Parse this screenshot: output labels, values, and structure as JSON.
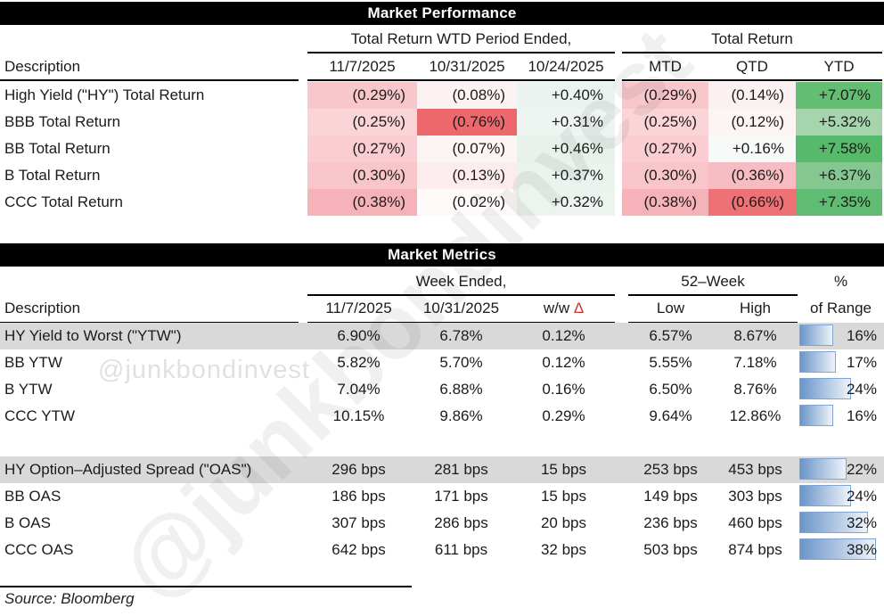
{
  "watermark": {
    "small_text": "@junkbondinvest",
    "large_text": "@junkbondinvest"
  },
  "source_note": "Source: Bloomberg",
  "performance": {
    "title": "Market Performance",
    "description_header": "Description",
    "group1_header": "Total Return WTD Period Ended,",
    "group2_header": "Total Return",
    "columns": [
      "11/7/2025",
      "10/31/2025",
      "10/24/2025",
      "MTD",
      "QTD",
      "YTD"
    ],
    "rows": [
      {
        "label": "High Yield (\"HY\") Total Return",
        "cells": [
          {
            "text": "(0.29%)",
            "bg": "#f8c7cc"
          },
          {
            "text": "(0.08%)",
            "bg": "#fdf2f2"
          },
          {
            "text": "+0.40%",
            "bg": "#eaf3ef"
          },
          {
            "text": "(0.29%)",
            "bg": "#f8c7cc"
          },
          {
            "text": "(0.14%)",
            "bg": "#fcf1f1"
          },
          {
            "text": "+7.07%",
            "bg": "#63be74"
          }
        ]
      },
      {
        "label": "BBB Total Return",
        "cells": [
          {
            "text": "(0.25%)",
            "bg": "#fad4d7"
          },
          {
            "text": "(0.76%)",
            "bg": "#ed686d"
          },
          {
            "text": "+0.31%",
            "bg": "#edf4f1"
          },
          {
            "text": "(0.25%)",
            "bg": "#fad4d7"
          },
          {
            "text": "(0.12%)",
            "bg": "#fdf4f4"
          },
          {
            "text": "+5.32%",
            "bg": "#a5d4ad"
          }
        ]
      },
      {
        "label": "BB Total Return",
        "cells": [
          {
            "text": "(0.27%)",
            "bg": "#f9cdd1"
          },
          {
            "text": "(0.07%)",
            "bg": "#fdf4f4"
          },
          {
            "text": "+0.46%",
            "bg": "#e8f2eb"
          },
          {
            "text": "(0.27%)",
            "bg": "#f9cdd1"
          },
          {
            "text": "+0.16%",
            "bg": "#f7faf8"
          },
          {
            "text": "+7.58%",
            "bg": "#57b96a"
          }
        ]
      },
      {
        "label": "B Total Return",
        "cells": [
          {
            "text": "(0.30%)",
            "bg": "#f8c5ca"
          },
          {
            "text": "(0.13%)",
            "bg": "#fceced"
          },
          {
            "text": "+0.37%",
            "bg": "#ebf3ee"
          },
          {
            "text": "(0.30%)",
            "bg": "#f8c5ca"
          },
          {
            "text": "(0.36%)",
            "bg": "#f6bcc2"
          },
          {
            "text": "+6.37%",
            "bg": "#85c791"
          }
        ]
      },
      {
        "label": "CCC Total Return",
        "cells": [
          {
            "text": "(0.38%)",
            "bg": "#f5b2b8"
          },
          {
            "text": "(0.02%)",
            "bg": "#fefafa"
          },
          {
            "text": "+0.32%",
            "bg": "#edf4f0"
          },
          {
            "text": "(0.38%)",
            "bg": "#f5b2b8"
          },
          {
            "text": "(0.66%)",
            "bg": "#ee7176"
          },
          {
            "text": "+7.35%",
            "bg": "#60bc72"
          }
        ]
      }
    ]
  },
  "metrics": {
    "title": "Market Metrics",
    "description_header": "Description",
    "group1_header": "Week Ended,",
    "group2_header": "52–Week",
    "group3_header": "%",
    "columns": [
      "11/7/2025",
      "10/31/2025",
      "w/w",
      "Low",
      "High",
      "of Range"
    ],
    "delta_symbol": "Δ",
    "delta_color": "#c0392b",
    "bar_colors": {
      "fill_from": "#6b95c9",
      "fill_to": "#eef3fa",
      "border": "#7ea5d3"
    },
    "row_shade_color": "#d9d9d9",
    "rows": [
      {
        "label": "HY Yield to Worst (\"YTW\")",
        "shaded": true,
        "group": "ytw",
        "values": [
          "6.90%",
          "6.78%",
          "0.12%",
          "6.57%",
          "8.67%"
        ],
        "range_pct": 16,
        "range_label": "16%"
      },
      {
        "label": "BB YTW",
        "shaded": false,
        "group": "ytw",
        "values": [
          "5.82%",
          "5.70%",
          "0.12%",
          "5.55%",
          "7.18%"
        ],
        "range_pct": 17,
        "range_label": "17%"
      },
      {
        "label": "B YTW",
        "shaded": false,
        "group": "ytw",
        "values": [
          "7.04%",
          "6.88%",
          "0.16%",
          "6.50%",
          "8.76%"
        ],
        "range_pct": 24,
        "range_label": "24%"
      },
      {
        "label": "CCC YTW",
        "shaded": false,
        "group": "ytw",
        "values": [
          "10.15%",
          "9.86%",
          "0.29%",
          "9.64%",
          "12.86%"
        ],
        "range_pct": 16,
        "range_label": "16%"
      },
      {
        "label": "HY Option–Adjusted Spread (\"OAS\")",
        "shaded": true,
        "group": "oas",
        "values": [
          "296 bps",
          "281 bps",
          "15 bps",
          "253 bps",
          "453 bps"
        ],
        "range_pct": 22,
        "range_label": "22%"
      },
      {
        "label": "BB OAS",
        "shaded": false,
        "group": "oas",
        "values": [
          "186 bps",
          "171 bps",
          "15 bps",
          "149 bps",
          "303 bps"
        ],
        "range_pct": 24,
        "range_label": "24%"
      },
      {
        "label": "B OAS",
        "shaded": false,
        "group": "oas",
        "values": [
          "307 bps",
          "286 bps",
          "20 bps",
          "236 bps",
          "460 bps"
        ],
        "range_pct": 32,
        "range_label": "32%"
      },
      {
        "label": "CCC OAS",
        "shaded": false,
        "group": "oas",
        "values": [
          "642 bps",
          "611 bps",
          "32 bps",
          "503 bps",
          "874 bps"
        ],
        "range_pct": 38,
        "range_label": "38%"
      }
    ]
  }
}
